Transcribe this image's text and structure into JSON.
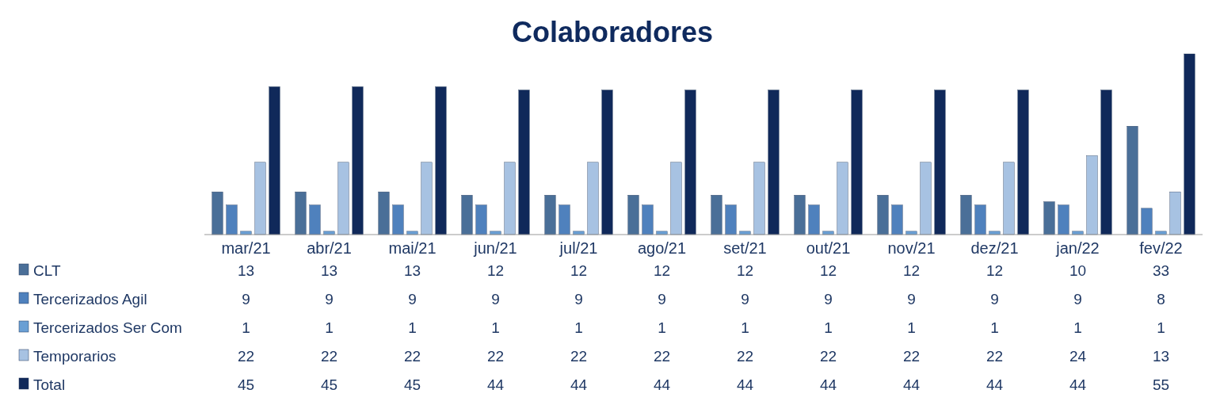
{
  "chart_data": {
    "type": "bar",
    "title": "Colaboradores",
    "categories": [
      "mar/21",
      "abr/21",
      "mai/21",
      "jun/21",
      "jul/21",
      "ago/21",
      "set/21",
      "out/21",
      "nov/21",
      "dez/21",
      "jan/22",
      "fev/22"
    ],
    "series": [
      {
        "name": "CLT",
        "color": "#4a6f98",
        "values": [
          13,
          13,
          13,
          12,
          12,
          12,
          12,
          12,
          12,
          12,
          10,
          33
        ]
      },
      {
        "name": "Tercerizados Agil",
        "color": "#4f81bd",
        "values": [
          9,
          9,
          9,
          9,
          9,
          9,
          9,
          9,
          9,
          9,
          9,
          8
        ]
      },
      {
        "name": "Tercerizados Ser Com",
        "color": "#6a9fd4",
        "values": [
          1,
          1,
          1,
          1,
          1,
          1,
          1,
          1,
          1,
          1,
          1,
          1
        ]
      },
      {
        "name": "Temporarios",
        "color": "#a7c2e2",
        "values": [
          22,
          22,
          22,
          22,
          22,
          22,
          22,
          22,
          22,
          22,
          24,
          13
        ]
      },
      {
        "name": "Total",
        "color": "#10295a",
        "values": [
          45,
          45,
          45,
          44,
          44,
          44,
          44,
          44,
          44,
          44,
          44,
          55
        ]
      }
    ],
    "data_labels": true,
    "legend": "bottom left",
    "grid": false
  }
}
